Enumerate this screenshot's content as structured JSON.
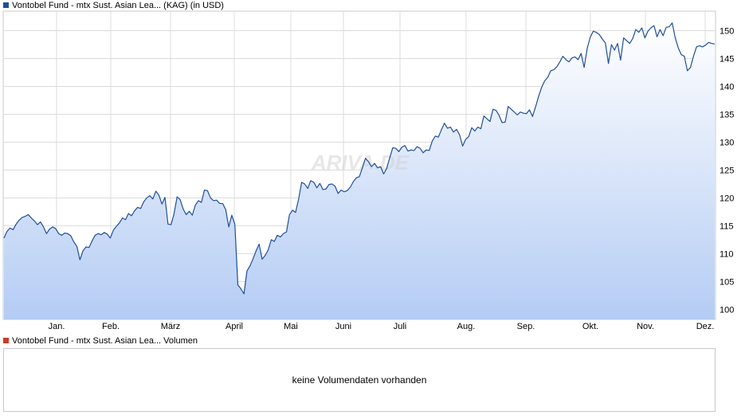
{
  "chart_data": {
    "type": "area",
    "title": "Vontobel Fund - mtx Sust. Asian Lea... (KAG)",
    "currency_label": "(in USD)",
    "watermark": "ARIVA.DE",
    "x_tick_labels": [
      "Jan.",
      "Feb.",
      "März",
      "April",
      "Mai",
      "Juni",
      "Juli",
      "Aug.",
      "Sep.",
      "Okt.",
      "Nov.",
      "Dez."
    ],
    "y_ticks": [
      100,
      105,
      110,
      115,
      120,
      125,
      130,
      135,
      140,
      145,
      150
    ],
    "ylim": [
      98.2,
      153.5
    ],
    "grid": true,
    "series": [
      {
        "name": "Vontobel Fund - mtx Sust. Asian Lea... (KAG)",
        "color": "#1f4e9c",
        "values": [
          112.8,
          114.0,
          114.6,
          114.3,
          115.3,
          116.0,
          116.5,
          116.7,
          117.0,
          116.4,
          115.9,
          115.2,
          115.7,
          114.8,
          113.6,
          114.4,
          114.8,
          114.5,
          113.6,
          113.3,
          113.7,
          113.6,
          113.2,
          112.1,
          111.3,
          108.9,
          110.5,
          111.2,
          111.1,
          112.3,
          113.3,
          113.6,
          113.4,
          113.8,
          113.5,
          112.8,
          114.2,
          114.9,
          115.5,
          116.4,
          116.1,
          117.2,
          116.8,
          117.7,
          118.3,
          118.1,
          119.3,
          120.0,
          120.4,
          119.8,
          121.2,
          120.5,
          118.9,
          120.1,
          115.3,
          115.2,
          117.2,
          120.2,
          119.7,
          118.0,
          117.0,
          117.6,
          116.9,
          118.7,
          119.5,
          119.2,
          121.4,
          121.3,
          120.0,
          119.5,
          119.6,
          119.0,
          119.0,
          117.9,
          114.8,
          116.9,
          115.3,
          104.4,
          103.7,
          102.8,
          106.9,
          107.8,
          109.1,
          110.5,
          111.7,
          109.0,
          109.7,
          110.7,
          112.5,
          112.2,
          113.3,
          113.0,
          113.6,
          113.9,
          117.0,
          117.8,
          117.4,
          119.8,
          122.8,
          122.5,
          121.7,
          123.1,
          122.8,
          121.8,
          122.6,
          121.5,
          121.6,
          122.4,
          122.5,
          122.1,
          120.8,
          121.4,
          121.1,
          121.3,
          121.9,
          122.9,
          123.6,
          123.8,
          125.4,
          127.1,
          126.5,
          125.6,
          126.2,
          125.4,
          125.6,
          124.3,
          125.3,
          127.2,
          129.0,
          128.9,
          128.3,
          129.1,
          129.4,
          128.4,
          128.6,
          128.5,
          129.2,
          128.9,
          128.1,
          128.6,
          128.5,
          130.2,
          131.1,
          130.9,
          132.2,
          133.4,
          132.5,
          132.7,
          131.8,
          132.3,
          131.3,
          129.3,
          130.5,
          131.0,
          132.6,
          132.0,
          132.7,
          132.4,
          134.7,
          134.2,
          133.7,
          135.9,
          135.7,
          134.8,
          133.5,
          133.6,
          136.4,
          135.9,
          135.4,
          134.9,
          135.4,
          135.2,
          135.1,
          135.8,
          134.6,
          136.3,
          138.2,
          139.8,
          141.0,
          141.6,
          142.8,
          143.0,
          143.5,
          144.4,
          145.4,
          144.8,
          144.4,
          145.1,
          145.3,
          144.8,
          145.9,
          143.4,
          146.8,
          148.8,
          149.9,
          149.7,
          149.3,
          148.5,
          147.8,
          144.1,
          147.5,
          146.5,
          147.7,
          144.7,
          148.7,
          148.2,
          147.7,
          148.6,
          150.2,
          149.7,
          150.5,
          148.7,
          149.9,
          150.5,
          150.9,
          148.9,
          150.2,
          149.1,
          150.6,
          150.7,
          151.4,
          148.7,
          146.9,
          145.7,
          145.4,
          142.8,
          143.4,
          145.4,
          147.1,
          147.3,
          147.1,
          147.4,
          147.9,
          147.7,
          147.6
        ]
      }
    ]
  },
  "volume_panel": {
    "legend": "Vontobel Fund - mtx Sust. Asian Lea... Volumen",
    "legend_color": "#cc3b2a",
    "message": "keine Volumendaten vorhanden"
  }
}
